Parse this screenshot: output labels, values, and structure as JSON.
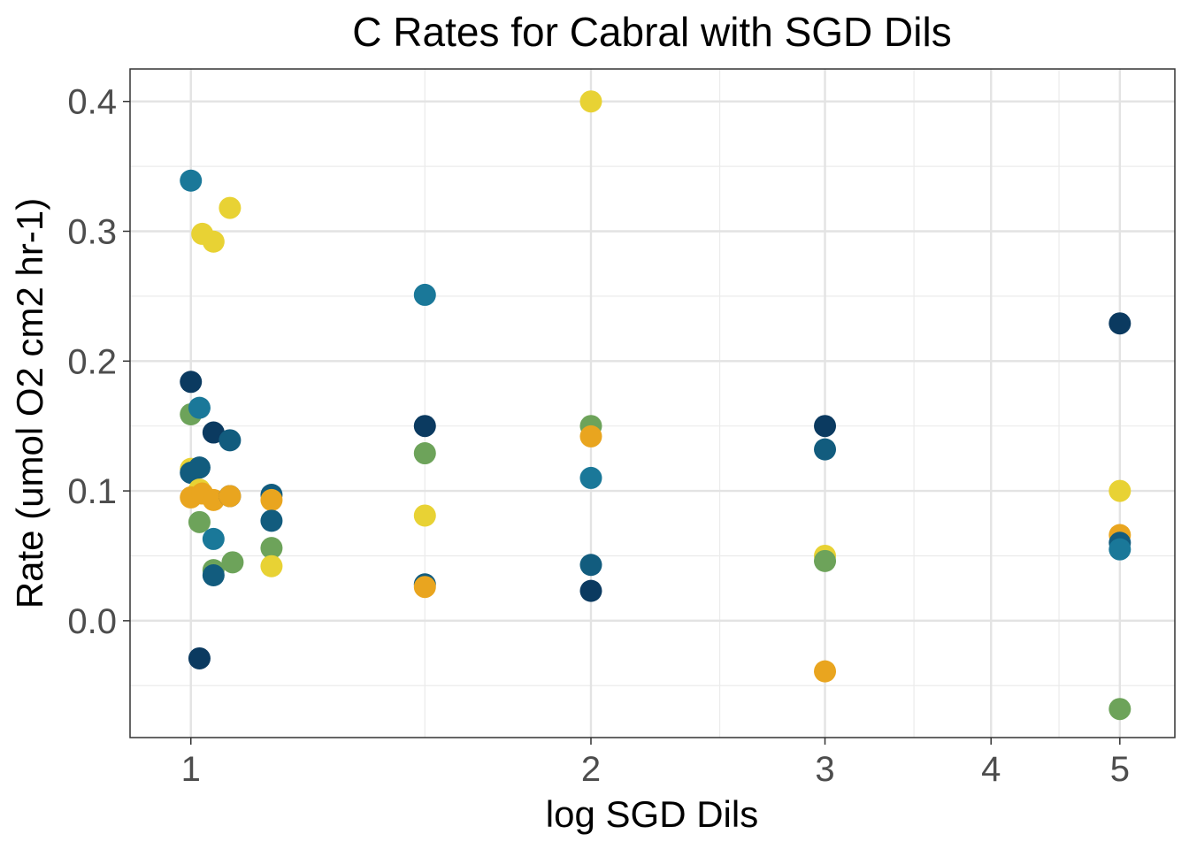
{
  "chart_data": {
    "type": "scatter",
    "title": "C Rates for Cabral with SGD Dils",
    "xlabel": "log SGD Dils",
    "ylabel": "Rate (umol O2 cm2 hr-1)",
    "x_scale": "log",
    "xlim": [
      0.9,
      5.5
    ],
    "ylim": [
      -0.09,
      0.425
    ],
    "x_ticks": [
      1,
      2,
      3,
      4,
      5
    ],
    "x_tick_labels": [
      "1",
      "2",
      "3",
      "4",
      "5"
    ],
    "x_minor_ticks": [
      1.5,
      2.5,
      3.5,
      4.5
    ],
    "y_ticks": [
      0.0,
      0.1,
      0.2,
      0.3,
      0.4
    ],
    "y_tick_labels": [
      "0.0",
      "0.1",
      "0.2",
      "0.3",
      "0.4"
    ],
    "y_minor_ticks": [
      -0.05,
      0.05,
      0.15,
      0.25,
      0.35
    ],
    "grid": true,
    "legend": "none",
    "colors": {
      "navy": "#0b3a60",
      "teal_dark": "#125c7e",
      "teal": "#1a7899",
      "green": "#6da35a",
      "yellow": "#e8d234",
      "orange": "#e9a51f"
    },
    "points": [
      {
        "x": 1.0,
        "y": 0.339,
        "color": "teal"
      },
      {
        "x": 1.02,
        "y": 0.298,
        "color": "yellow"
      },
      {
        "x": 1.04,
        "y": 0.292,
        "color": "yellow"
      },
      {
        "x": 1.07,
        "y": 0.318,
        "color": "yellow"
      },
      {
        "x": 1.0,
        "y": 0.184,
        "color": "navy"
      },
      {
        "x": 1.0,
        "y": 0.159,
        "color": "green"
      },
      {
        "x": 1.015,
        "y": 0.164,
        "color": "teal"
      },
      {
        "x": 1.04,
        "y": 0.145,
        "color": "navy"
      },
      {
        "x": 1.07,
        "y": 0.139,
        "color": "teal_dark"
      },
      {
        "x": 1.0,
        "y": 0.117,
        "color": "yellow"
      },
      {
        "x": 1.0,
        "y": 0.114,
        "color": "teal_dark"
      },
      {
        "x": 1.015,
        "y": 0.118,
        "color": "teal_dark"
      },
      {
        "x": 1.015,
        "y": 0.101,
        "color": "yellow"
      },
      {
        "x": 1.0,
        "y": 0.095,
        "color": "orange"
      },
      {
        "x": 1.02,
        "y": 0.098,
        "color": "orange"
      },
      {
        "x": 1.04,
        "y": 0.093,
        "color": "orange"
      },
      {
        "x": 1.07,
        "y": 0.096,
        "color": "navy"
      },
      {
        "x": 1.07,
        "y": 0.096,
        "color": "orange"
      },
      {
        "x": 1.015,
        "y": 0.076,
        "color": "green"
      },
      {
        "x": 1.04,
        "y": 0.063,
        "color": "teal"
      },
      {
        "x": 1.04,
        "y": 0.039,
        "color": "green"
      },
      {
        "x": 1.075,
        "y": 0.045,
        "color": "green"
      },
      {
        "x": 1.04,
        "y": 0.035,
        "color": "teal_dark"
      },
      {
        "x": 1.015,
        "y": -0.029,
        "color": "navy"
      },
      {
        "x": 1.15,
        "y": 0.097,
        "color": "teal_dark"
      },
      {
        "x": 1.15,
        "y": 0.093,
        "color": "orange"
      },
      {
        "x": 1.15,
        "y": 0.077,
        "color": "teal_dark"
      },
      {
        "x": 1.15,
        "y": 0.056,
        "color": "green"
      },
      {
        "x": 1.15,
        "y": 0.042,
        "color": "yellow"
      },
      {
        "x": 1.5,
        "y": 0.251,
        "color": "teal"
      },
      {
        "x": 1.5,
        "y": 0.15,
        "color": "navy"
      },
      {
        "x": 1.5,
        "y": 0.129,
        "color": "green"
      },
      {
        "x": 1.5,
        "y": 0.081,
        "color": "yellow"
      },
      {
        "x": 1.5,
        "y": 0.028,
        "color": "teal_dark"
      },
      {
        "x": 1.5,
        "y": 0.026,
        "color": "orange"
      },
      {
        "x": 2.0,
        "y": 0.4,
        "color": "yellow"
      },
      {
        "x": 2.0,
        "y": 0.15,
        "color": "green"
      },
      {
        "x": 2.0,
        "y": 0.142,
        "color": "orange"
      },
      {
        "x": 2.0,
        "y": 0.11,
        "color": "teal"
      },
      {
        "x": 2.0,
        "y": 0.043,
        "color": "teal_dark"
      },
      {
        "x": 2.0,
        "y": 0.023,
        "color": "navy"
      },
      {
        "x": 3.0,
        "y": 0.15,
        "color": "navy"
      },
      {
        "x": 3.0,
        "y": 0.132,
        "color": "teal_dark"
      },
      {
        "x": 3.0,
        "y": 0.05,
        "color": "yellow"
      },
      {
        "x": 3.0,
        "y": 0.046,
        "color": "green"
      },
      {
        "x": 3.0,
        "y": -0.039,
        "color": "orange"
      },
      {
        "x": 5.0,
        "y": 0.229,
        "color": "navy"
      },
      {
        "x": 5.0,
        "y": 0.1,
        "color": "yellow"
      },
      {
        "x": 5.0,
        "y": 0.066,
        "color": "orange"
      },
      {
        "x": 5.0,
        "y": 0.06,
        "color": "teal_dark"
      },
      {
        "x": 5.0,
        "y": 0.055,
        "color": "teal"
      },
      {
        "x": 5.0,
        "y": -0.068,
        "color": "green"
      }
    ]
  }
}
